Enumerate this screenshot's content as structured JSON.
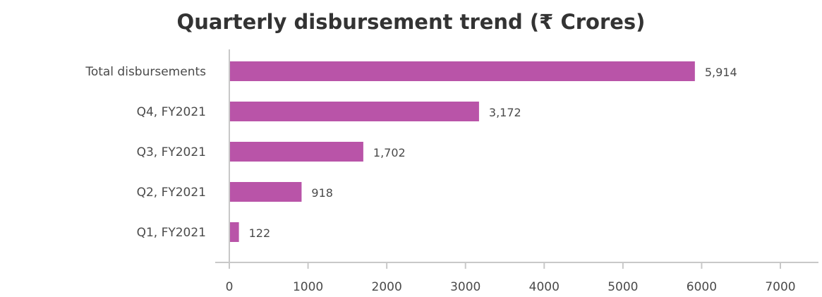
{
  "chart_data": {
    "type": "bar",
    "orientation": "horizontal",
    "title": "Quarterly disbursement trend (₹ Crores)",
    "categories": [
      "Total disbursements",
      "Q4, FY2021",
      "Q3, FY2021",
      "Q2, FY2021",
      "Q1, FY2021"
    ],
    "values": [
      5914,
      3172,
      1702,
      918,
      122
    ],
    "value_labels": [
      "5,914",
      "3,172",
      "1,702",
      "918",
      "122"
    ],
    "xlim": [
      0,
      7000
    ],
    "xticks": [
      0,
      1000,
      2000,
      3000,
      4000,
      5000,
      6000,
      7000
    ],
    "xtick_labels": [
      "0",
      "1000",
      "2000",
      "3000",
      "4000",
      "5000",
      "6000",
      "7000"
    ],
    "xlabel": "",
    "ylabel": "",
    "grid": false,
    "bar_color": "#b954a8",
    "axis_color": "#c8c8c8"
  }
}
